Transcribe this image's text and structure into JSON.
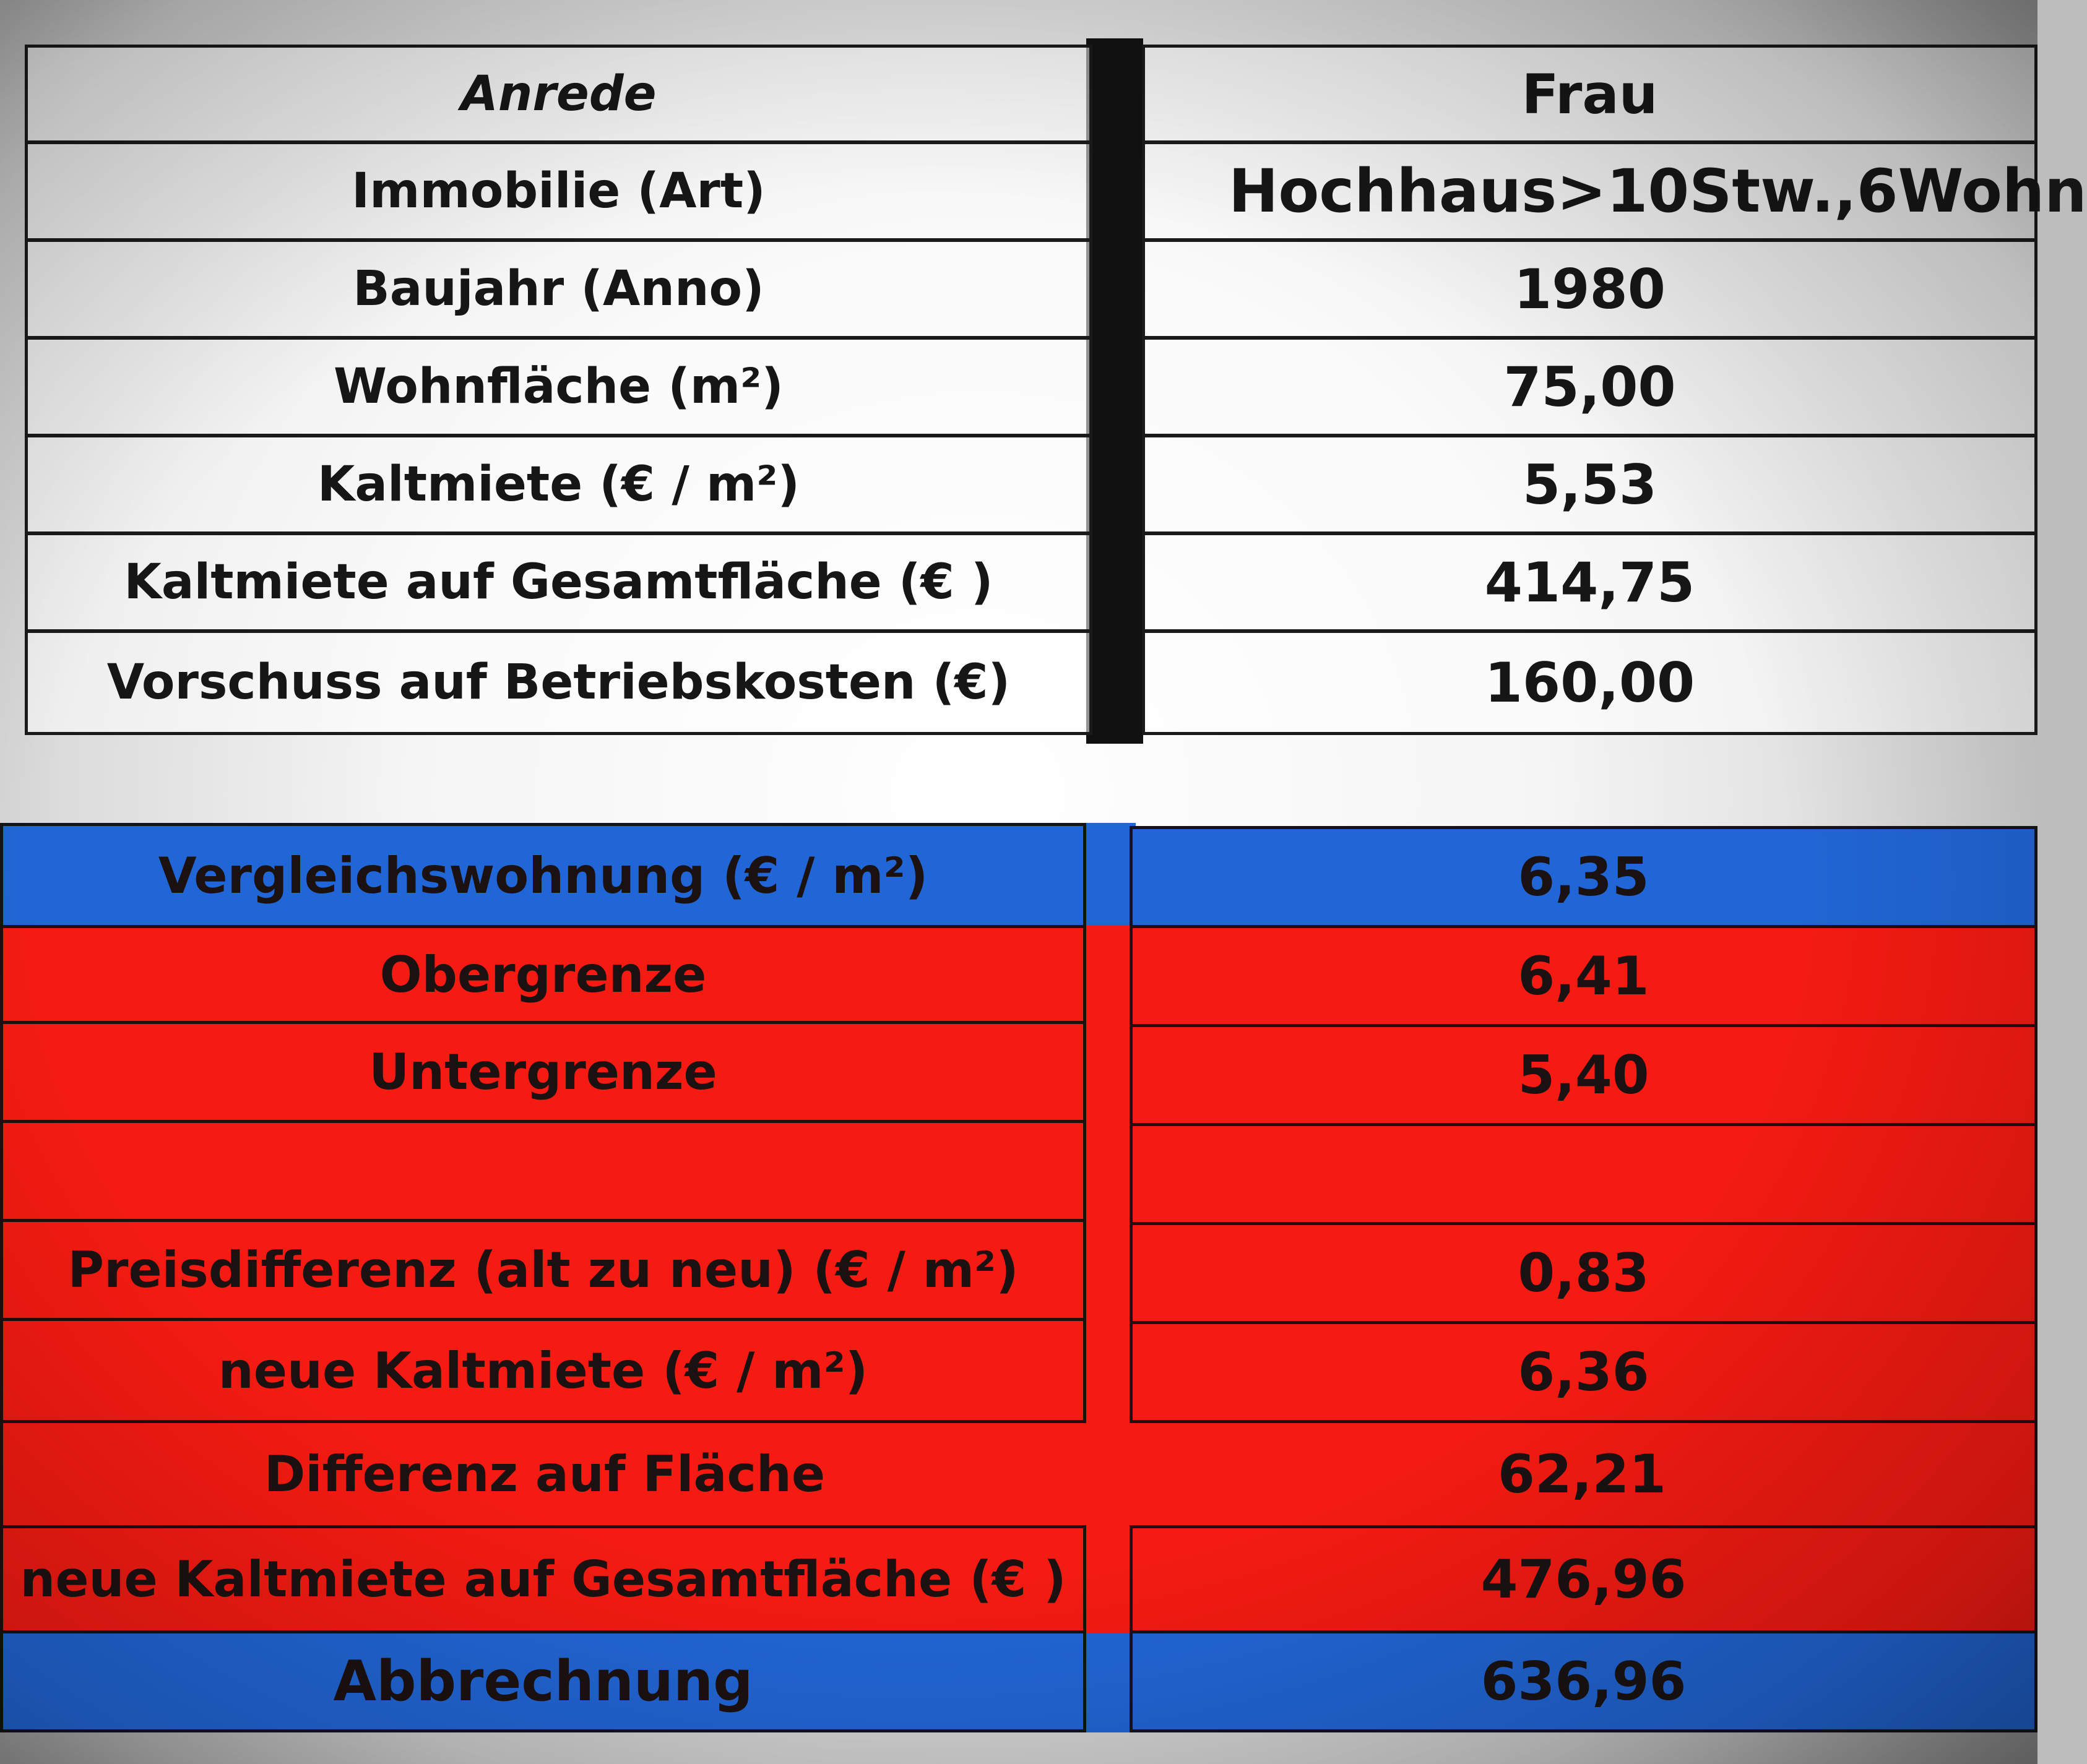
{
  "info_table": {
    "rows": [
      {
        "label": "Anrede",
        "value": "Frau"
      },
      {
        "label": "Immobilie (Art)",
        "value": "Hochhaus>10Stw.,6Wohn"
      },
      {
        "label": "Baujahr (Anno)",
        "value": "1980"
      },
      {
        "label": "Wohnfläche (m²)",
        "value": "75,00"
      },
      {
        "label": "Kaltmiete  (€ / m²)",
        "value": "5,53"
      },
      {
        "label": "Kaltmiete auf Gesamtfläche  (€ )",
        "value": "414,75"
      },
      {
        "label": "Vorschuss auf Betriebskosten (€)",
        "value": "160,00"
      }
    ]
  },
  "calc_table": {
    "rows": [
      {
        "label": "Vergleichswohnung (€ / m²)",
        "value": "6,35",
        "color": "#2166d6"
      },
      {
        "label": "Obergrenze",
        "value": "6,41",
        "color": "#f51b12"
      },
      {
        "label": "Untergrenze",
        "value": "5,40",
        "color": "#f51b12"
      },
      {
        "label": "",
        "value": "",
        "color": "#f51b12"
      },
      {
        "label": "Preisdifferenz (alt zu neu) (€ / m²)",
        "value": "0,83",
        "color": "#f51b12"
      },
      {
        "label": "neue Kaltmiete  (€ / m²)",
        "value": "6,36",
        "color": "#f51b12"
      },
      {
        "label": "Differenz auf Fläche",
        "value": "62,21",
        "color": "#f51b12"
      },
      {
        "label": "neue Kaltmiete auf Gesamtfläche  (€ )",
        "value": "476,96",
        "color": "#f51b12"
      },
      {
        "label": "Abbrechnung",
        "value": "636,96",
        "color": "#2166d6"
      }
    ]
  }
}
